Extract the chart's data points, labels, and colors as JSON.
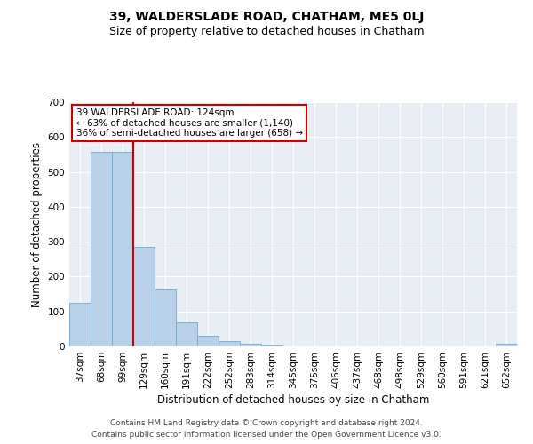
{
  "title1": "39, WALDERSLADE ROAD, CHATHAM, ME5 0LJ",
  "title2": "Size of property relative to detached houses in Chatham",
  "xlabel": "Distribution of detached houses by size in Chatham",
  "ylabel": "Number of detached properties",
  "categories": [
    "37sqm",
    "68sqm",
    "99sqm",
    "129sqm",
    "160sqm",
    "191sqm",
    "222sqm",
    "252sqm",
    "283sqm",
    "314sqm",
    "345sqm",
    "375sqm",
    "406sqm",
    "437sqm",
    "468sqm",
    "498sqm",
    "529sqm",
    "560sqm",
    "591sqm",
    "621sqm",
    "652sqm"
  ],
  "values": [
    125,
    558,
    558,
    285,
    162,
    68,
    30,
    15,
    7,
    3,
    1,
    1,
    0,
    1,
    0,
    0,
    0,
    0,
    0,
    0,
    8
  ],
  "bar_color": "#b8d0e8",
  "bar_edge_color": "#6aaad4",
  "vline_color": "#cc0000",
  "annotation_text": "39 WALDERSLADE ROAD: 124sqm\n← 63% of detached houses are smaller (1,140)\n36% of semi-detached houses are larger (658) →",
  "annotation_box_color": "#ffffff",
  "annotation_box_edge_color": "#cc0000",
  "ylim": [
    0,
    700
  ],
  "yticks": [
    0,
    100,
    200,
    300,
    400,
    500,
    600,
    700
  ],
  "background_color": "#e8eef4",
  "footer1": "Contains HM Land Registry data © Crown copyright and database right 2024.",
  "footer2": "Contains public sector information licensed under the Open Government Licence v3.0.",
  "title1_fontsize": 10,
  "title2_fontsize": 9,
  "axis_label_fontsize": 8.5,
  "tick_fontsize": 7.5,
  "annotation_fontsize": 7.5,
  "footer_fontsize": 6.5
}
